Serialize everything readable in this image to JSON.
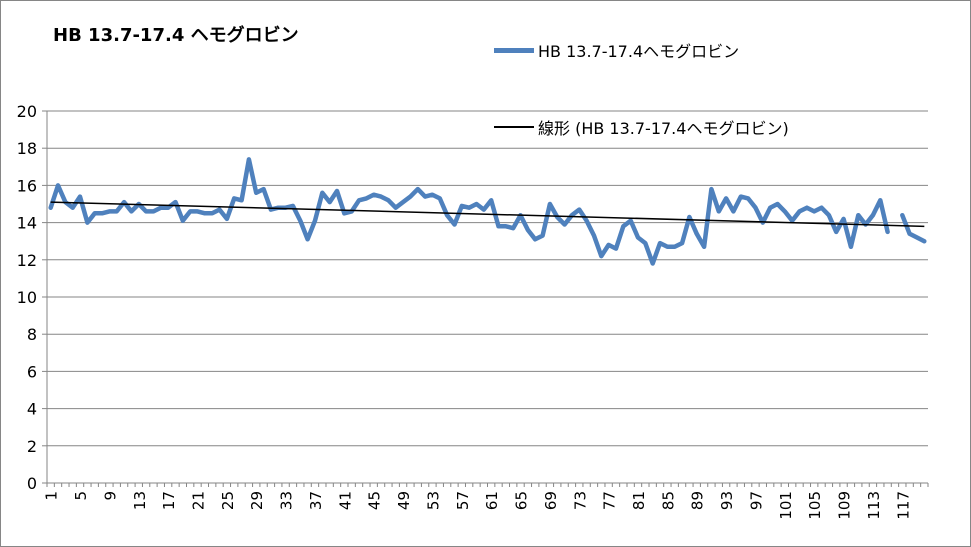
{
  "chart_data": {
    "type": "line",
    "title": "HB 13.7-17.4 ヘモグロビン",
    "xlabel": "",
    "ylabel": "",
    "ylim": [
      0,
      20
    ],
    "yticks": [
      0,
      2,
      4,
      6,
      8,
      10,
      12,
      14,
      16,
      18,
      20
    ],
    "x": [
      1,
      2,
      3,
      4,
      5,
      6,
      7,
      8,
      9,
      10,
      11,
      12,
      13,
      14,
      15,
      16,
      17,
      18,
      19,
      20,
      21,
      22,
      23,
      24,
      25,
      26,
      27,
      28,
      29,
      30,
      31,
      32,
      33,
      34,
      35,
      36,
      37,
      38,
      39,
      40,
      41,
      42,
      43,
      44,
      45,
      46,
      47,
      48,
      49,
      50,
      51,
      52,
      53,
      54,
      55,
      56,
      57,
      58,
      59,
      60,
      61,
      62,
      63,
      64,
      65,
      66,
      67,
      68,
      69,
      70,
      71,
      72,
      73,
      74,
      75,
      76,
      77,
      78,
      79,
      80,
      81,
      82,
      83,
      84,
      85,
      86,
      87,
      88,
      89,
      90,
      91,
      92,
      93,
      94,
      95,
      96,
      97,
      98,
      99,
      100,
      101,
      102,
      103,
      104,
      105,
      106,
      107,
      108,
      109,
      110,
      111,
      112,
      113,
      114,
      115,
      116,
      117,
      118,
      119,
      120
    ],
    "xtick_labels": [
      "1",
      "5",
      "9",
      "13",
      "17",
      "21",
      "25",
      "29",
      "33",
      "37",
      "41",
      "45",
      "49",
      "53",
      "57",
      "61",
      "65",
      "69",
      "73",
      "77",
      "81",
      "85",
      "89",
      "93",
      "97",
      "101",
      "105",
      "109",
      "113",
      "117"
    ],
    "xtick_step": 4,
    "grid": true,
    "legend_placement": "top-right",
    "series": [
      {
        "name": "HB 13.7-17.4ヘモグロビン",
        "color": "#4f81bd",
        "values": [
          14.8,
          16.0,
          15.1,
          14.8,
          15.4,
          14.0,
          14.5,
          14.5,
          14.6,
          14.6,
          15.1,
          14.6,
          15.0,
          14.6,
          14.6,
          14.8,
          14.8,
          15.1,
          14.1,
          14.6,
          14.6,
          14.5,
          14.5,
          14.7,
          14.2,
          15.3,
          15.2,
          17.4,
          15.6,
          15.8,
          14.7,
          14.8,
          14.8,
          14.9,
          14.1,
          13.1,
          14.1,
          15.6,
          15.1,
          15.7,
          14.5,
          14.6,
          15.2,
          15.3,
          15.5,
          15.4,
          15.2,
          14.8,
          15.1,
          15.4,
          15.8,
          15.4,
          15.5,
          15.3,
          14.4,
          13.9,
          14.9,
          14.8,
          15.0,
          14.7,
          15.2,
          13.8,
          13.8,
          13.7,
          14.4,
          13.6,
          13.1,
          13.3,
          15.0,
          14.3,
          13.9,
          14.4,
          14.7,
          14.1,
          13.3,
          12.2,
          12.8,
          12.6,
          13.8,
          14.1,
          13.2,
          12.9,
          11.8,
          12.9,
          12.7,
          12.7,
          12.9,
          14.3,
          13.4,
          12.7,
          15.8,
          14.6,
          15.3,
          14.6,
          15.4,
          15.3,
          14.8,
          14.0,
          14.8,
          15.0,
          14.6,
          14.1,
          14.6,
          14.8,
          14.6,
          14.8,
          14.4,
          13.5,
          14.2,
          12.7,
          14.4,
          13.9,
          14.4,
          15.2,
          13.5,
          null,
          14.4,
          13.4,
          13.2,
          13.0
        ]
      }
    ],
    "trendline": {
      "name": "線形 (HB 13.7-17.4ヘモグロビン)",
      "color": "#000000",
      "type": "linear",
      "start": 15.1,
      "end": 13.8
    }
  }
}
